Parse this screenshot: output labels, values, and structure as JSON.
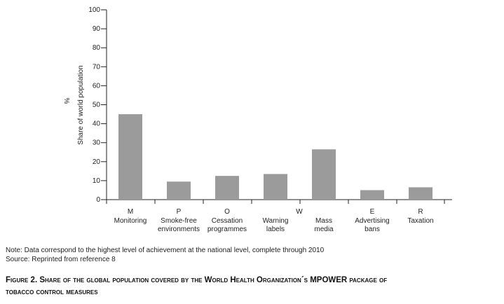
{
  "chart_data": {
    "type": "bar",
    "categories": [
      {
        "letter": "M",
        "label_lines": [
          "Monitoring"
        ]
      },
      {
        "letter": "P",
        "label_lines": [
          "Smoke-free",
          "environments"
        ]
      },
      {
        "letter": "O",
        "label_lines": [
          "Cessation",
          "programmes"
        ]
      },
      {
        "letter": "W",
        "label_lines": [
          "Warning",
          "labels"
        ]
      },
      {
        "letter": "",
        "label_lines": [
          "Mass",
          "media"
        ]
      },
      {
        "letter": "E",
        "label_lines": [
          "Advertising",
          "bans"
        ]
      },
      {
        "letter": "R",
        "label_lines": [
          "Taxation"
        ]
      }
    ],
    "values": [
      45,
      9.5,
      12.5,
      13.5,
      26.5,
      5,
      6.5
    ],
    "ylabel": "Share of world population",
    "yunit": "%",
    "ylim": [
      0,
      100
    ],
    "yticks": [
      0,
      10,
      20,
      30,
      40,
      50,
      60,
      70,
      80,
      90,
      100
    ],
    "bar_color": "#9b9b9b",
    "grid": false
  },
  "notes": {
    "line1": "Note: Data correspond to the highest level of achievement at the national level, complete through 2010",
    "line2": "Source: Reprinted from reference 8"
  },
  "caption": {
    "line1": "Figure 2. Share of the global population covered by the World Health Organization´s MPOWER package of",
    "line2": "tobacco control measures"
  }
}
